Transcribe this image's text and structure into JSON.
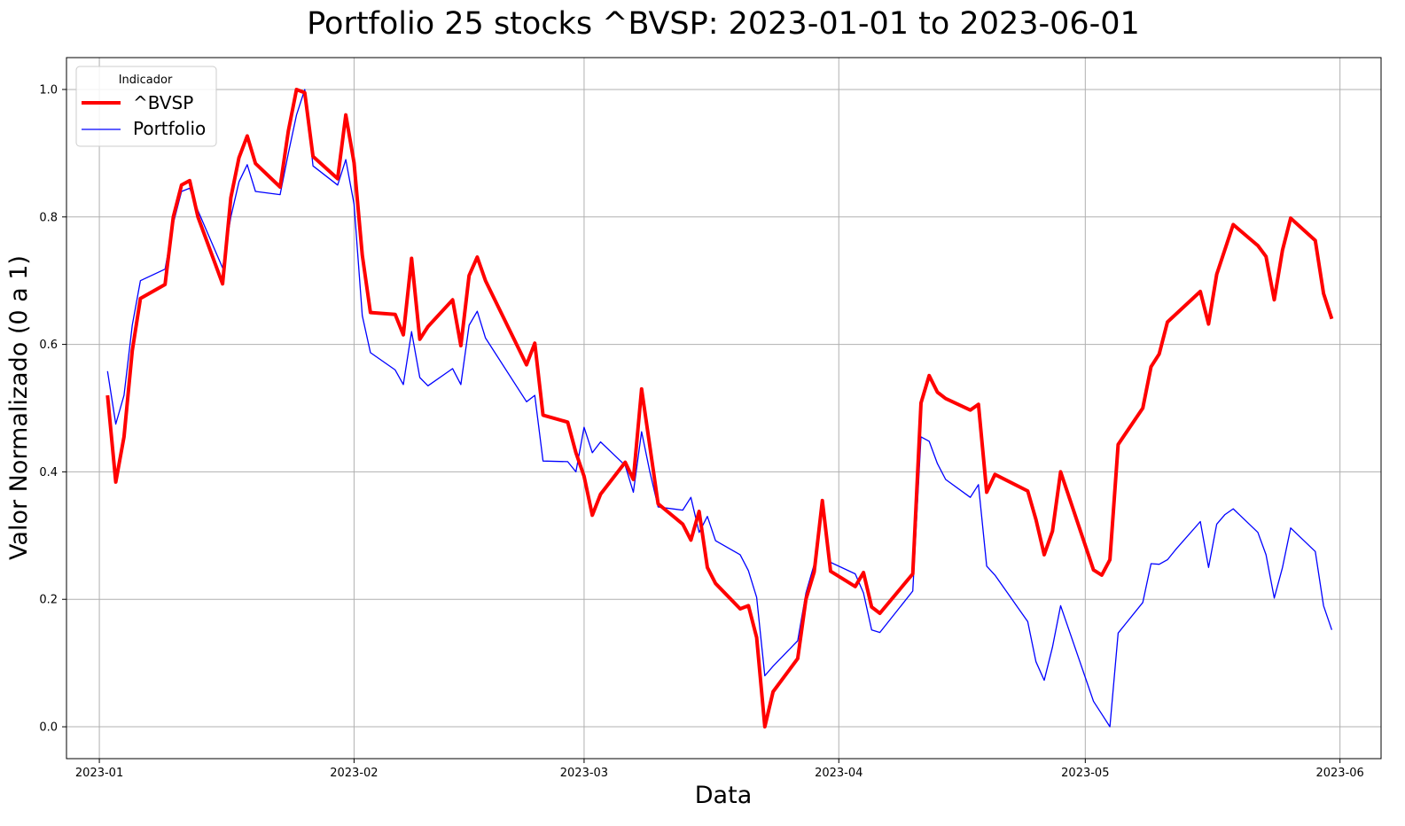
{
  "chart_data": {
    "type": "line",
    "title": "Portfolio 25 stocks ^BVSP: 2023-01-01 to 2023-06-01",
    "xlabel": "Data",
    "ylabel": "Valor Normalizado (0 a 1)",
    "xlim": [
      "2022-12-28",
      "2023-06-06"
    ],
    "ylim": [
      -0.05,
      1.05
    ],
    "x_ticks": [
      "2023-01",
      "2023-02",
      "2023-03",
      "2023-04",
      "2023-05",
      "2023-06"
    ],
    "y_ticks": [
      "0.0",
      "0.2",
      "0.4",
      "0.6",
      "0.8",
      "1.0"
    ],
    "grid": true,
    "legend": {
      "title": "Indicador",
      "placement": "top-left"
    },
    "series": [
      {
        "name": "^BVSP",
        "color": "#ff0000",
        "points": [
          [
            "2023-01-02",
            0.52
          ],
          [
            "2023-01-03",
            0.384
          ],
          [
            "2023-01-04",
            0.455
          ],
          [
            "2023-01-05",
            0.59
          ],
          [
            "2023-01-06",
            0.672
          ],
          [
            "2023-01-09",
            0.694
          ],
          [
            "2023-01-10",
            0.8
          ],
          [
            "2023-01-11",
            0.85
          ],
          [
            "2023-01-12",
            0.857
          ],
          [
            "2023-01-13",
            0.8
          ],
          [
            "2023-01-16",
            0.695
          ],
          [
            "2023-01-17",
            0.83
          ],
          [
            "2023-01-18",
            0.893
          ],
          [
            "2023-01-19",
            0.927
          ],
          [
            "2023-01-20",
            0.884
          ],
          [
            "2023-01-23",
            0.847
          ],
          [
            "2023-01-24",
            0.935
          ],
          [
            "2023-01-25",
            1.0
          ],
          [
            "2023-01-26",
            0.995
          ],
          [
            "2023-01-27",
            0.895
          ],
          [
            "2023-01-30",
            0.86
          ],
          [
            "2023-01-31",
            0.96
          ],
          [
            "2023-02-01",
            0.885
          ],
          [
            "2023-02-02",
            0.74
          ],
          [
            "2023-02-03",
            0.65
          ],
          [
            "2023-02-06",
            0.647
          ],
          [
            "2023-02-07",
            0.615
          ],
          [
            "2023-02-08",
            0.735
          ],
          [
            "2023-02-09",
            0.608
          ],
          [
            "2023-02-10",
            0.628
          ],
          [
            "2023-02-13",
            0.67
          ],
          [
            "2023-02-14",
            0.598
          ],
          [
            "2023-02-15",
            0.708
          ],
          [
            "2023-02-16",
            0.737
          ],
          [
            "2023-02-17",
            0.7
          ],
          [
            "2023-02-22",
            0.568
          ],
          [
            "2023-02-23",
            0.602
          ],
          [
            "2023-02-24",
            0.489
          ],
          [
            "2023-02-27",
            0.478
          ],
          [
            "2023-02-28",
            0.43
          ],
          [
            "2023-03-01",
            0.393
          ],
          [
            "2023-03-02",
            0.332
          ],
          [
            "2023-03-03",
            0.365
          ],
          [
            "2023-03-06",
            0.415
          ],
          [
            "2023-03-07",
            0.388
          ],
          [
            "2023-03-08",
            0.53
          ],
          [
            "2023-03-09",
            0.44
          ],
          [
            "2023-03-10",
            0.35
          ],
          [
            "2023-03-13",
            0.318
          ],
          [
            "2023-03-14",
            0.293
          ],
          [
            "2023-03-15",
            0.338
          ],
          [
            "2023-03-16",
            0.25
          ],
          [
            "2023-03-17",
            0.225
          ],
          [
            "2023-03-20",
            0.185
          ],
          [
            "2023-03-21",
            0.19
          ],
          [
            "2023-03-22",
            0.14
          ],
          [
            "2023-03-23",
            0.0
          ],
          [
            "2023-03-24",
            0.055
          ],
          [
            "2023-03-27",
            0.107
          ],
          [
            "2023-03-28",
            0.2
          ],
          [
            "2023-03-29",
            0.243
          ],
          [
            "2023-03-30",
            0.355
          ],
          [
            "2023-03-31",
            0.244
          ],
          [
            "2023-04-03",
            0.22
          ],
          [
            "2023-04-04",
            0.242
          ],
          [
            "2023-04-05",
            0.188
          ],
          [
            "2023-04-06",
            0.178
          ],
          [
            "2023-04-10",
            0.24
          ],
          [
            "2023-04-11",
            0.508
          ],
          [
            "2023-04-12",
            0.551
          ],
          [
            "2023-04-13",
            0.525
          ],
          [
            "2023-04-14",
            0.515
          ],
          [
            "2023-04-17",
            0.497
          ],
          [
            "2023-04-18",
            0.506
          ],
          [
            "2023-04-19",
            0.368
          ],
          [
            "2023-04-20",
            0.396
          ],
          [
            "2023-04-24",
            0.37
          ],
          [
            "2023-04-25",
            0.325
          ],
          [
            "2023-04-26",
            0.27
          ],
          [
            "2023-04-27",
            0.307
          ],
          [
            "2023-04-28",
            0.4
          ],
          [
            "2023-05-02",
            0.246
          ],
          [
            "2023-05-03",
            0.238
          ],
          [
            "2023-05-04",
            0.262
          ],
          [
            "2023-05-05",
            0.443
          ],
          [
            "2023-05-08",
            0.5
          ],
          [
            "2023-05-09",
            0.565
          ],
          [
            "2023-05-10",
            0.585
          ],
          [
            "2023-05-11",
            0.635
          ],
          [
            "2023-05-15",
            0.683
          ],
          [
            "2023-05-16",
            0.632
          ],
          [
            "2023-05-17",
            0.71
          ],
          [
            "2023-05-19",
            0.788
          ],
          [
            "2023-05-22",
            0.755
          ],
          [
            "2023-05-23",
            0.738
          ],
          [
            "2023-05-24",
            0.67
          ],
          [
            "2023-05-25",
            0.748
          ],
          [
            "2023-05-26",
            0.798
          ],
          [
            "2023-05-29",
            0.763
          ],
          [
            "2023-05-30",
            0.68
          ],
          [
            "2023-05-31",
            0.64
          ]
        ]
      },
      {
        "name": "Portfolio",
        "color": "#0000ff",
        "points": [
          [
            "2023-01-02",
            0.558
          ],
          [
            "2023-01-03",
            0.475
          ],
          [
            "2023-01-04",
            0.52
          ],
          [
            "2023-01-05",
            0.63
          ],
          [
            "2023-01-06",
            0.7
          ],
          [
            "2023-01-09",
            0.718
          ],
          [
            "2023-01-10",
            0.79
          ],
          [
            "2023-01-11",
            0.84
          ],
          [
            "2023-01-12",
            0.845
          ],
          [
            "2023-01-13",
            0.81
          ],
          [
            "2023-01-16",
            0.72
          ],
          [
            "2023-01-17",
            0.8
          ],
          [
            "2023-01-18",
            0.855
          ],
          [
            "2023-01-19",
            0.882
          ],
          [
            "2023-01-20",
            0.84
          ],
          [
            "2023-01-23",
            0.835
          ],
          [
            "2023-01-24",
            0.9
          ],
          [
            "2023-01-25",
            0.96
          ],
          [
            "2023-01-26",
            1.0
          ],
          [
            "2023-01-27",
            0.88
          ],
          [
            "2023-01-30",
            0.85
          ],
          [
            "2023-01-31",
            0.89
          ],
          [
            "2023-02-01",
            0.82
          ],
          [
            "2023-02-02",
            0.645
          ],
          [
            "2023-02-03",
            0.587
          ],
          [
            "2023-02-06",
            0.56
          ],
          [
            "2023-02-07",
            0.537
          ],
          [
            "2023-02-08",
            0.62
          ],
          [
            "2023-02-09",
            0.548
          ],
          [
            "2023-02-10",
            0.535
          ],
          [
            "2023-02-13",
            0.562
          ],
          [
            "2023-02-14",
            0.537
          ],
          [
            "2023-02-15",
            0.63
          ],
          [
            "2023-02-16",
            0.652
          ],
          [
            "2023-02-17",
            0.61
          ],
          [
            "2023-02-22",
            0.51
          ],
          [
            "2023-02-23",
            0.52
          ],
          [
            "2023-02-24",
            0.417
          ],
          [
            "2023-02-27",
            0.416
          ],
          [
            "2023-02-28",
            0.4
          ],
          [
            "2023-03-01",
            0.47
          ],
          [
            "2023-03-02",
            0.43
          ],
          [
            "2023-03-03",
            0.447
          ],
          [
            "2023-03-06",
            0.41
          ],
          [
            "2023-03-07",
            0.368
          ],
          [
            "2023-03-08",
            0.463
          ],
          [
            "2023-03-09",
            0.4
          ],
          [
            "2023-03-10",
            0.345
          ],
          [
            "2023-03-13",
            0.34
          ],
          [
            "2023-03-14",
            0.36
          ],
          [
            "2023-03-15",
            0.305
          ],
          [
            "2023-03-16",
            0.33
          ],
          [
            "2023-03-17",
            0.292
          ],
          [
            "2023-03-20",
            0.27
          ],
          [
            "2023-03-21",
            0.245
          ],
          [
            "2023-03-22",
            0.203
          ],
          [
            "2023-03-23",
            0.08
          ],
          [
            "2023-03-24",
            0.095
          ],
          [
            "2023-03-27",
            0.135
          ],
          [
            "2023-03-28",
            0.21
          ],
          [
            "2023-03-29",
            0.255
          ],
          [
            "2023-03-30",
            0.345
          ],
          [
            "2023-03-31",
            0.258
          ],
          [
            "2023-04-03",
            0.24
          ],
          [
            "2023-04-04",
            0.21
          ],
          [
            "2023-04-05",
            0.152
          ],
          [
            "2023-04-06",
            0.148
          ],
          [
            "2023-04-10",
            0.213
          ],
          [
            "2023-04-11",
            0.455
          ],
          [
            "2023-04-12",
            0.448
          ],
          [
            "2023-04-13",
            0.413
          ],
          [
            "2023-04-14",
            0.388
          ],
          [
            "2023-04-17",
            0.36
          ],
          [
            "2023-04-18",
            0.38
          ],
          [
            "2023-04-19",
            0.252
          ],
          [
            "2023-04-20",
            0.238
          ],
          [
            "2023-04-24",
            0.165
          ],
          [
            "2023-04-25",
            0.102
          ],
          [
            "2023-04-26",
            0.073
          ],
          [
            "2023-04-27",
            0.125
          ],
          [
            "2023-04-28",
            0.19
          ],
          [
            "2023-05-02",
            0.04
          ],
          [
            "2023-05-03",
            0.02
          ],
          [
            "2023-05-04",
            0.0
          ],
          [
            "2023-05-05",
            0.147
          ],
          [
            "2023-05-08",
            0.195
          ],
          [
            "2023-05-09",
            0.256
          ],
          [
            "2023-05-10",
            0.255
          ],
          [
            "2023-05-11",
            0.262
          ],
          [
            "2023-05-12",
            0.278
          ],
          [
            "2023-05-15",
            0.322
          ],
          [
            "2023-05-16",
            0.25
          ],
          [
            "2023-05-17",
            0.318
          ],
          [
            "2023-05-18",
            0.333
          ],
          [
            "2023-05-19",
            0.342
          ],
          [
            "2023-05-22",
            0.305
          ],
          [
            "2023-05-23",
            0.27
          ],
          [
            "2023-05-24",
            0.202
          ],
          [
            "2023-05-25",
            0.25
          ],
          [
            "2023-05-26",
            0.312
          ],
          [
            "2023-05-29",
            0.275
          ],
          [
            "2023-05-30",
            0.19
          ],
          [
            "2023-05-31",
            0.152
          ]
        ]
      }
    ]
  }
}
